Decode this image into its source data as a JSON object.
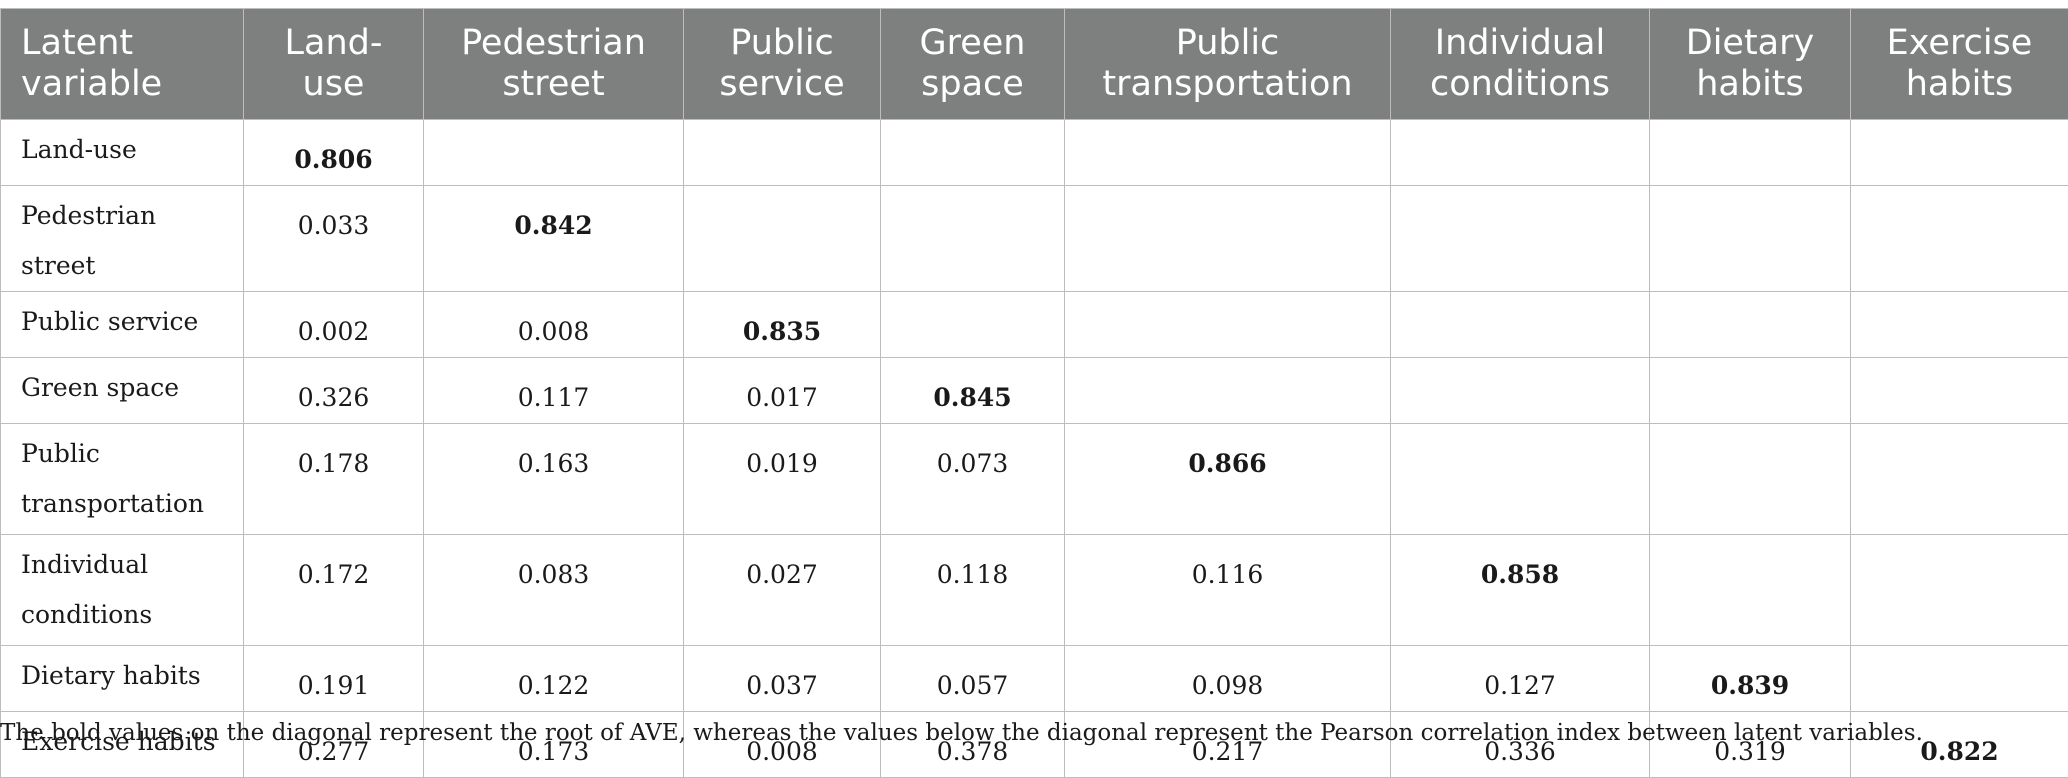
{
  "table": {
    "headers": [
      "Latent variable",
      "Land-use",
      "Pedestrian street",
      "Public service",
      "Green space",
      "Public transportation",
      "Individual conditions",
      "Dietary habits",
      "Exercise habits"
    ],
    "header_lines": [
      [
        "Latent",
        "variable"
      ],
      [
        "Land-",
        "use"
      ],
      [
        "Pedestrian",
        "street"
      ],
      [
        "Public",
        "service"
      ],
      [
        "Green",
        "space"
      ],
      [
        "Public",
        "transportation"
      ],
      [
        "Individual",
        "conditions"
      ],
      [
        "Dietary",
        "habits"
      ],
      [
        "Exercise",
        "habits"
      ]
    ],
    "rows": [
      {
        "label": "Land-use",
        "values": [
          "0.806",
          "",
          "",
          "",
          "",
          "",
          "",
          ""
        ]
      },
      {
        "label": "Pedestrian street",
        "values": [
          "0.033",
          "0.842",
          "",
          "",
          "",
          "",
          "",
          ""
        ]
      },
      {
        "label": "Public service",
        "values": [
          "0.002",
          "0.008",
          "0.835",
          "",
          "",
          "",
          "",
          ""
        ]
      },
      {
        "label": "Green space",
        "values": [
          "0.326",
          "0.117",
          "0.017",
          "0.845",
          "",
          "",
          "",
          ""
        ]
      },
      {
        "label": "Public transportation",
        "label_lines": [
          "Public",
          "transportation"
        ],
        "values": [
          "0.178",
          "0.163",
          "0.019",
          "0.073",
          "0.866",
          "",
          "",
          ""
        ]
      },
      {
        "label": "Individual conditions",
        "label_lines": [
          "Individual",
          "conditions"
        ],
        "values": [
          "0.172",
          "0.083",
          "0.027",
          "0.118",
          "0.116",
          "0.858",
          "",
          ""
        ]
      },
      {
        "label": "Dietary habits",
        "values": [
          "0.191",
          "0.122",
          "0.037",
          "0.057",
          "0.098",
          "0.127",
          "0.839",
          ""
        ]
      },
      {
        "label": "Exercise habits",
        "values": [
          "0.277",
          "0.173",
          "0.008",
          "0.378",
          "0.217",
          "0.336",
          "0.319",
          "0.822"
        ]
      }
    ],
    "diagonal_bold": true
  },
  "note": "The bold values on the diagonal represent the root of AVE, whereas the values below the diagonal represent the Pearson correlation index between latent variables.",
  "colors": {
    "header_bg": "#7e7f7f",
    "header_text": "#ffffff",
    "grid": "#bdbdbd"
  }
}
